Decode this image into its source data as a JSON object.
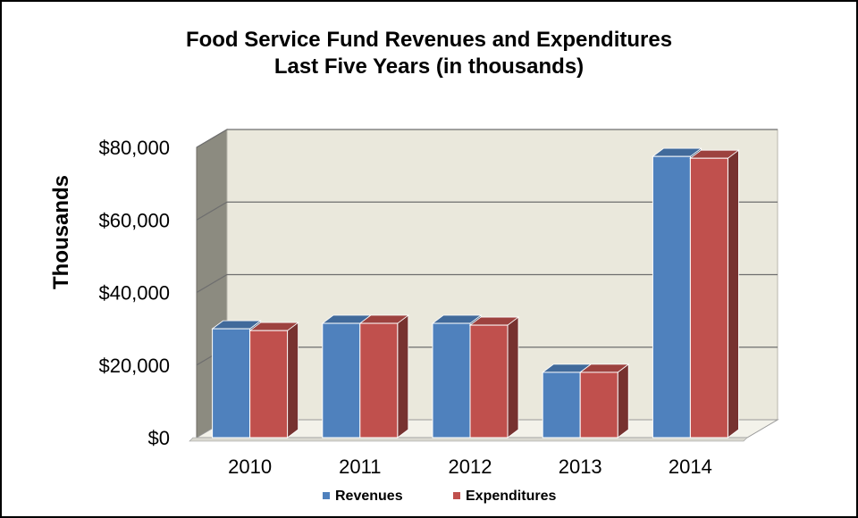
{
  "chart_data": {
    "type": "bar",
    "title": "Food Service Fund Revenues and Expenditures",
    "subtitle": "Last Five Years (in thousands)",
    "xlabel": "",
    "ylabel": "Thousands",
    "categories": [
      "2010",
      "2011",
      "2012",
      "2013",
      "2014"
    ],
    "series": [
      {
        "name": "Revenues",
        "color": "#4f81bd",
        "values": [
          30000,
          31500,
          31500,
          18000,
          77500
        ]
      },
      {
        "name": "Expenditures",
        "color": "#c0504d",
        "values": [
          29500,
          31500,
          31000,
          18000,
          77000
        ]
      }
    ],
    "ylim": [
      0,
      80000
    ],
    "yticks": [
      0,
      20000,
      40000,
      60000,
      80000
    ],
    "ytick_labels": [
      "$0",
      "$20,000",
      "$40,000",
      "$60,000",
      "$80,000"
    ],
    "grid": true,
    "legend_position": "bottom",
    "style": "3d-clustered-column"
  }
}
